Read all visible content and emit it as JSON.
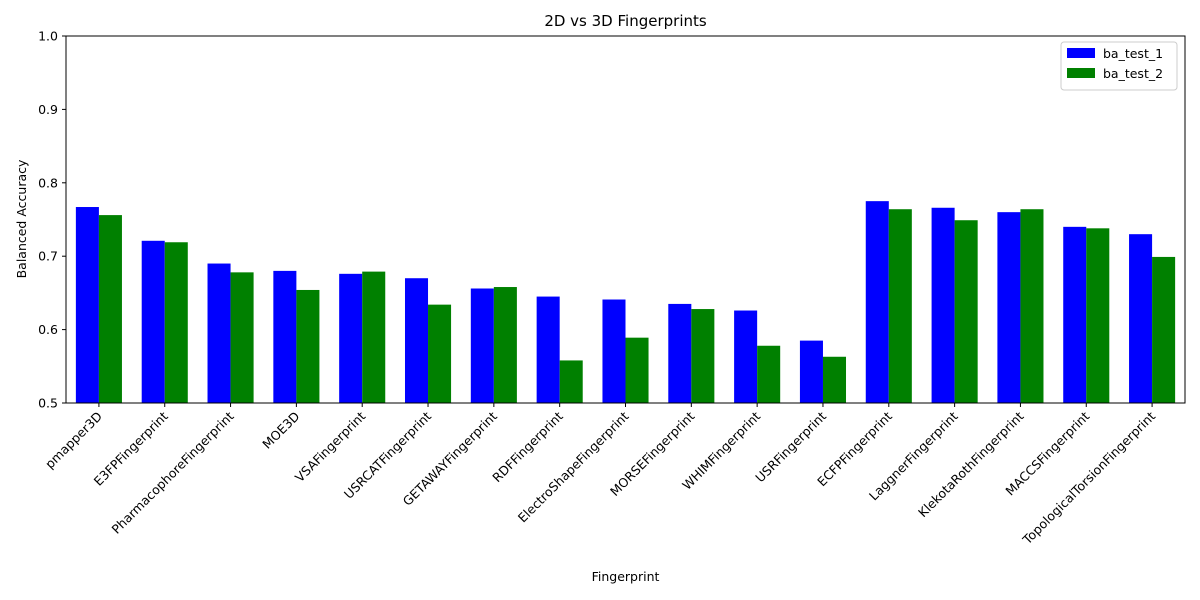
{
  "chart_data": {
    "type": "bar",
    "title": "2D vs 3D Fingerprints",
    "xlabel": "Fingerprint",
    "ylabel": "Balanced Accuracy",
    "ylim": [
      0.5,
      1.0
    ],
    "yticks": [
      "0.5",
      "0.6",
      "0.7",
      "0.8",
      "0.9",
      "1.0"
    ],
    "grid": false,
    "legend_position": "top-right",
    "categories": [
      "pmapper3D",
      "E3FPFingerprint",
      "PharmacophoreFingerprint",
      "MOE3D",
      "VSAFingerprint",
      "USRCATFingerprint",
      "GETAWAYFingerprint",
      "RDFFingerprint",
      "ElectroShapeFingerprint",
      "MORSEFingerprint",
      "WHIMFingerprint",
      "USRFingerprint",
      "ECFPFingerprint",
      "LaggnerFingerprint",
      "KlekotaRothFingerprint",
      "MACCSFingerprint",
      "TopologicalTorsionFingerprint"
    ],
    "series": [
      {
        "name": "ba_test_1",
        "color": "#0000ff",
        "values": [
          0.767,
          0.721,
          0.69,
          0.68,
          0.676,
          0.67,
          0.656,
          0.645,
          0.641,
          0.635,
          0.626,
          0.585,
          0.775,
          0.766,
          0.76,
          0.74,
          0.73
        ]
      },
      {
        "name": "ba_test_2",
        "color": "#008000",
        "values": [
          0.756,
          0.719,
          0.678,
          0.654,
          0.679,
          0.634,
          0.658,
          0.558,
          0.589,
          0.628,
          0.578,
          0.563,
          0.764,
          0.749,
          0.764,
          0.738,
          0.699
        ]
      }
    ]
  }
}
